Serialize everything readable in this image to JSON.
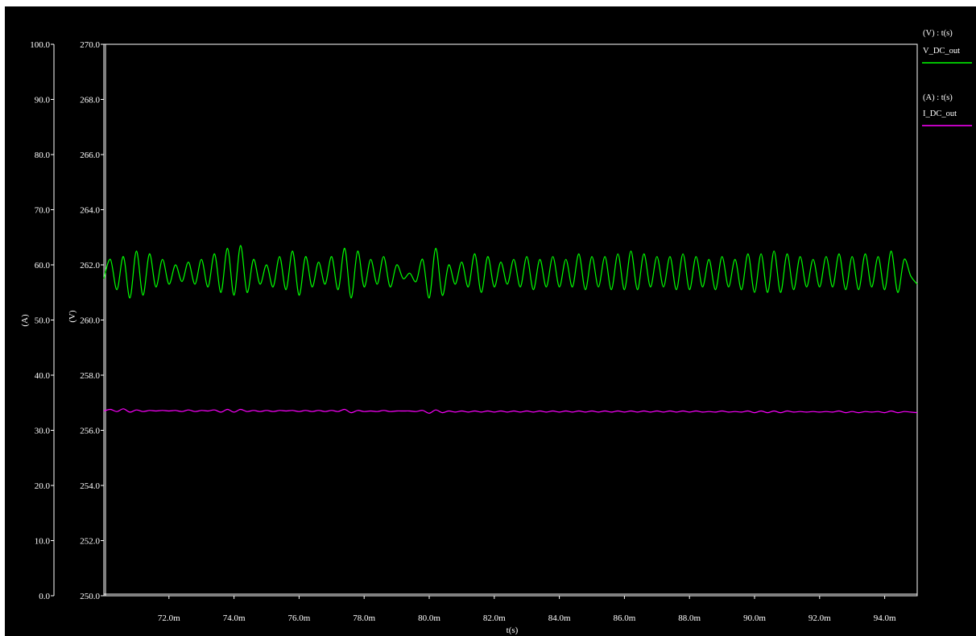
{
  "colors": {
    "background": "#000000",
    "frame": "#ffffff",
    "text": "#ffffff",
    "v_series": "#00ff00",
    "i_series": "#ff00ff"
  },
  "chart_data": {
    "type": "line",
    "title": "",
    "xlabel": "t(s)",
    "x_unit": "s",
    "xlim": [
      0.07,
      0.095
    ],
    "x_ticks": [
      0.072,
      0.074,
      0.076,
      0.078,
      0.08,
      0.082,
      0.084,
      0.086,
      0.088,
      0.09,
      0.092,
      0.094
    ],
    "x_tick_labels": [
      "72.0m",
      "74.0m",
      "76.0m",
      "78.0m",
      "80.0m",
      "82.0m",
      "84.0m",
      "86.0m",
      "88.0m",
      "90.0m",
      "92.0m",
      "94.0m"
    ],
    "grid": false,
    "legend_position": "right",
    "y_axes": {
      "current": {
        "label": "(A)",
        "ylim": [
          0,
          100
        ],
        "ticks": [
          0,
          10,
          20,
          30,
          40,
          50,
          60,
          70,
          80,
          90,
          100
        ],
        "tick_labels": [
          "0.0",
          "10.0",
          "20.0",
          "30.0",
          "40.0",
          "50.0",
          "60.0",
          "70.0",
          "80.0",
          "90.0",
          "100.0"
        ]
      },
      "voltage": {
        "label": "(V)",
        "ylim": [
          250,
          270
        ],
        "ticks": [
          250,
          252,
          254,
          256,
          258,
          260,
          262,
          264,
          266,
          268,
          270
        ],
        "tick_labels": [
          "250.0",
          "252.0",
          "254.0",
          "256.0",
          "258.0",
          "260.0",
          "262.0",
          "264.0",
          "266.0",
          "268.0",
          "270.0"
        ]
      }
    },
    "series": [
      {
        "name": "V_DC_out",
        "header": "(V) : t(s)",
        "axis": "voltage",
        "color": "#00ff00",
        "points": [
          [
            0.07,
            261.5
          ],
          [
            0.0702,
            262.2
          ],
          [
            0.0704,
            261.1
          ],
          [
            0.0706,
            262.3
          ],
          [
            0.0708,
            260.8
          ],
          [
            0.071,
            262.5
          ],
          [
            0.0712,
            260.9
          ],
          [
            0.0714,
            262.4
          ],
          [
            0.0716,
            261.2
          ],
          [
            0.0718,
            262.2
          ],
          [
            0.072,
            261.3
          ],
          [
            0.0722,
            262.0
          ],
          [
            0.0724,
            261.4
          ],
          [
            0.0726,
            262.1
          ],
          [
            0.0728,
            261.3
          ],
          [
            0.073,
            262.2
          ],
          [
            0.0732,
            261.2
          ],
          [
            0.0734,
            262.4
          ],
          [
            0.0736,
            261.0
          ],
          [
            0.0738,
            262.6
          ],
          [
            0.074,
            260.9
          ],
          [
            0.0742,
            262.7
          ],
          [
            0.0744,
            261.0
          ],
          [
            0.0746,
            262.2
          ],
          [
            0.0748,
            261.3
          ],
          [
            0.075,
            262.0
          ],
          [
            0.0752,
            261.2
          ],
          [
            0.0754,
            262.3
          ],
          [
            0.0756,
            261.1
          ],
          [
            0.0758,
            262.5
          ],
          [
            0.076,
            260.9
          ],
          [
            0.0762,
            262.3
          ],
          [
            0.0764,
            261.2
          ],
          [
            0.0766,
            262.1
          ],
          [
            0.0768,
            261.3
          ],
          [
            0.077,
            262.3
          ],
          [
            0.0772,
            261.1
          ],
          [
            0.0774,
            262.6
          ],
          [
            0.0776,
            260.8
          ],
          [
            0.0778,
            262.5
          ],
          [
            0.078,
            261.2
          ],
          [
            0.0782,
            262.2
          ],
          [
            0.0784,
            261.3
          ],
          [
            0.0786,
            262.3
          ],
          [
            0.0788,
            261.2
          ],
          [
            0.079,
            262.0
          ],
          [
            0.0792,
            261.5
          ],
          [
            0.0794,
            261.7
          ],
          [
            0.0796,
            261.4
          ],
          [
            0.0798,
            262.2
          ],
          [
            0.08,
            260.8
          ],
          [
            0.0802,
            262.6
          ],
          [
            0.0804,
            260.9
          ],
          [
            0.0806,
            262.0
          ],
          [
            0.0808,
            261.3
          ],
          [
            0.081,
            262.1
          ],
          [
            0.0812,
            261.2
          ],
          [
            0.0814,
            262.4
          ],
          [
            0.0816,
            261.0
          ],
          [
            0.0818,
            262.3
          ],
          [
            0.082,
            261.2
          ],
          [
            0.0822,
            262.1
          ],
          [
            0.0824,
            261.3
          ],
          [
            0.0826,
            262.2
          ],
          [
            0.0828,
            261.2
          ],
          [
            0.083,
            262.3
          ],
          [
            0.0832,
            261.1
          ],
          [
            0.0834,
            262.2
          ],
          [
            0.0836,
            261.2
          ],
          [
            0.0838,
            262.3
          ],
          [
            0.084,
            261.2
          ],
          [
            0.0842,
            262.2
          ],
          [
            0.0844,
            261.2
          ],
          [
            0.0846,
            262.4
          ],
          [
            0.0848,
            261.1
          ],
          [
            0.085,
            262.3
          ],
          [
            0.0852,
            261.2
          ],
          [
            0.0854,
            262.3
          ],
          [
            0.0856,
            261.1
          ],
          [
            0.0858,
            262.4
          ],
          [
            0.086,
            261.1
          ],
          [
            0.0862,
            262.5
          ],
          [
            0.0864,
            261.1
          ],
          [
            0.0866,
            262.4
          ],
          [
            0.0868,
            261.2
          ],
          [
            0.087,
            262.3
          ],
          [
            0.0872,
            261.2
          ],
          [
            0.0874,
            262.3
          ],
          [
            0.0876,
            261.1
          ],
          [
            0.0878,
            262.4
          ],
          [
            0.088,
            261.1
          ],
          [
            0.0882,
            262.3
          ],
          [
            0.0884,
            261.2
          ],
          [
            0.0886,
            262.2
          ],
          [
            0.0888,
            261.1
          ],
          [
            0.089,
            262.3
          ],
          [
            0.0892,
            261.2
          ],
          [
            0.0894,
            262.2
          ],
          [
            0.0896,
            261.1
          ],
          [
            0.0898,
            262.4
          ],
          [
            0.09,
            261.0
          ],
          [
            0.0902,
            262.4
          ],
          [
            0.0904,
            261.0
          ],
          [
            0.0906,
            262.5
          ],
          [
            0.0908,
            261.0
          ],
          [
            0.091,
            262.4
          ],
          [
            0.0912,
            261.1
          ],
          [
            0.0914,
            262.3
          ],
          [
            0.0916,
            261.2
          ],
          [
            0.0918,
            262.2
          ],
          [
            0.092,
            261.2
          ],
          [
            0.0922,
            262.3
          ],
          [
            0.0924,
            261.2
          ],
          [
            0.0926,
            262.4
          ],
          [
            0.0928,
            261.1
          ],
          [
            0.093,
            262.3
          ],
          [
            0.0932,
            261.1
          ],
          [
            0.0934,
            262.4
          ],
          [
            0.0936,
            261.2
          ],
          [
            0.0938,
            262.3
          ],
          [
            0.094,
            261.1
          ],
          [
            0.0942,
            262.5
          ],
          [
            0.0944,
            261.0
          ],
          [
            0.0946,
            262.2
          ],
          [
            0.0948,
            261.6
          ],
          [
            0.095,
            261.3
          ]
        ]
      },
      {
        "name": "I_DC_out",
        "header": "(A) : t(s)",
        "axis": "current",
        "color": "#ff00ff",
        "points": [
          [
            0.07,
            33.5
          ],
          [
            0.0702,
            33.8
          ],
          [
            0.0704,
            33.4
          ],
          [
            0.0706,
            33.9
          ],
          [
            0.0708,
            33.3
          ],
          [
            0.071,
            33.7
          ],
          [
            0.0712,
            33.4
          ],
          [
            0.0714,
            33.6
          ],
          [
            0.0716,
            33.5
          ],
          [
            0.0718,
            33.6
          ],
          [
            0.072,
            33.5
          ],
          [
            0.0722,
            33.6
          ],
          [
            0.0724,
            33.4
          ],
          [
            0.0726,
            33.7
          ],
          [
            0.0728,
            33.4
          ],
          [
            0.073,
            33.6
          ],
          [
            0.0732,
            33.5
          ],
          [
            0.0734,
            33.7
          ],
          [
            0.0736,
            33.3
          ],
          [
            0.0738,
            33.8
          ],
          [
            0.074,
            33.3
          ],
          [
            0.0742,
            33.8
          ],
          [
            0.0744,
            33.4
          ],
          [
            0.0746,
            33.6
          ],
          [
            0.0748,
            33.4
          ],
          [
            0.075,
            33.6
          ],
          [
            0.0752,
            33.4
          ],
          [
            0.0754,
            33.6
          ],
          [
            0.0756,
            33.5
          ],
          [
            0.0758,
            33.6
          ],
          [
            0.076,
            33.4
          ],
          [
            0.0762,
            33.6
          ],
          [
            0.0764,
            33.4
          ],
          [
            0.0766,
            33.6
          ],
          [
            0.0768,
            33.4
          ],
          [
            0.077,
            33.6
          ],
          [
            0.0772,
            33.4
          ],
          [
            0.0774,
            33.8
          ],
          [
            0.0776,
            33.2
          ],
          [
            0.0778,
            33.6
          ],
          [
            0.078,
            33.4
          ],
          [
            0.0782,
            33.5
          ],
          [
            0.0784,
            33.4
          ],
          [
            0.0786,
            33.6
          ],
          [
            0.0788,
            33.4
          ],
          [
            0.079,
            33.5
          ],
          [
            0.0792,
            33.5
          ],
          [
            0.0794,
            33.5
          ],
          [
            0.0796,
            33.4
          ],
          [
            0.0798,
            33.6
          ],
          [
            0.08,
            33.1
          ],
          [
            0.0802,
            33.7
          ],
          [
            0.0804,
            33.2
          ],
          [
            0.0806,
            33.5
          ],
          [
            0.0808,
            33.3
          ],
          [
            0.081,
            33.5
          ],
          [
            0.0812,
            33.3
          ],
          [
            0.0814,
            33.5
          ],
          [
            0.0816,
            33.3
          ],
          [
            0.0818,
            33.5
          ],
          [
            0.082,
            33.3
          ],
          [
            0.0822,
            33.5
          ],
          [
            0.0824,
            33.3
          ],
          [
            0.0826,
            33.5
          ],
          [
            0.0828,
            33.3
          ],
          [
            0.083,
            33.5
          ],
          [
            0.0832,
            33.3
          ],
          [
            0.0834,
            33.5
          ],
          [
            0.0836,
            33.3
          ],
          [
            0.0838,
            33.5
          ],
          [
            0.084,
            33.3
          ],
          [
            0.0842,
            33.5
          ],
          [
            0.0844,
            33.3
          ],
          [
            0.0846,
            33.5
          ],
          [
            0.0848,
            33.3
          ],
          [
            0.085,
            33.5
          ],
          [
            0.0852,
            33.3
          ],
          [
            0.0854,
            33.5
          ],
          [
            0.0856,
            33.3
          ],
          [
            0.0858,
            33.5
          ],
          [
            0.086,
            33.3
          ],
          [
            0.0862,
            33.5
          ],
          [
            0.0864,
            33.3
          ],
          [
            0.0866,
            33.5
          ],
          [
            0.0868,
            33.3
          ],
          [
            0.087,
            33.5
          ],
          [
            0.0872,
            33.3
          ],
          [
            0.0874,
            33.5
          ],
          [
            0.0876,
            33.3
          ],
          [
            0.0878,
            33.5
          ],
          [
            0.088,
            33.3
          ],
          [
            0.0882,
            33.5
          ],
          [
            0.0884,
            33.3
          ],
          [
            0.0886,
            33.4
          ],
          [
            0.0888,
            33.3
          ],
          [
            0.089,
            33.5
          ],
          [
            0.0892,
            33.3
          ],
          [
            0.0894,
            33.4
          ],
          [
            0.0896,
            33.3
          ],
          [
            0.0898,
            33.5
          ],
          [
            0.09,
            33.2
          ],
          [
            0.0902,
            33.5
          ],
          [
            0.0904,
            33.2
          ],
          [
            0.0906,
            33.5
          ],
          [
            0.0908,
            33.2
          ],
          [
            0.091,
            33.5
          ],
          [
            0.0912,
            33.3
          ],
          [
            0.0914,
            33.4
          ],
          [
            0.0916,
            33.3
          ],
          [
            0.0918,
            33.4
          ],
          [
            0.092,
            33.3
          ],
          [
            0.0922,
            33.4
          ],
          [
            0.0924,
            33.3
          ],
          [
            0.0926,
            33.5
          ],
          [
            0.0928,
            33.2
          ],
          [
            0.093,
            33.4
          ],
          [
            0.0932,
            33.2
          ],
          [
            0.0934,
            33.4
          ],
          [
            0.0936,
            33.3
          ],
          [
            0.0938,
            33.4
          ],
          [
            0.094,
            33.2
          ],
          [
            0.0942,
            33.5
          ],
          [
            0.0944,
            33.2
          ],
          [
            0.0946,
            33.4
          ],
          [
            0.0948,
            33.3
          ],
          [
            0.095,
            33.2
          ]
        ]
      }
    ]
  }
}
